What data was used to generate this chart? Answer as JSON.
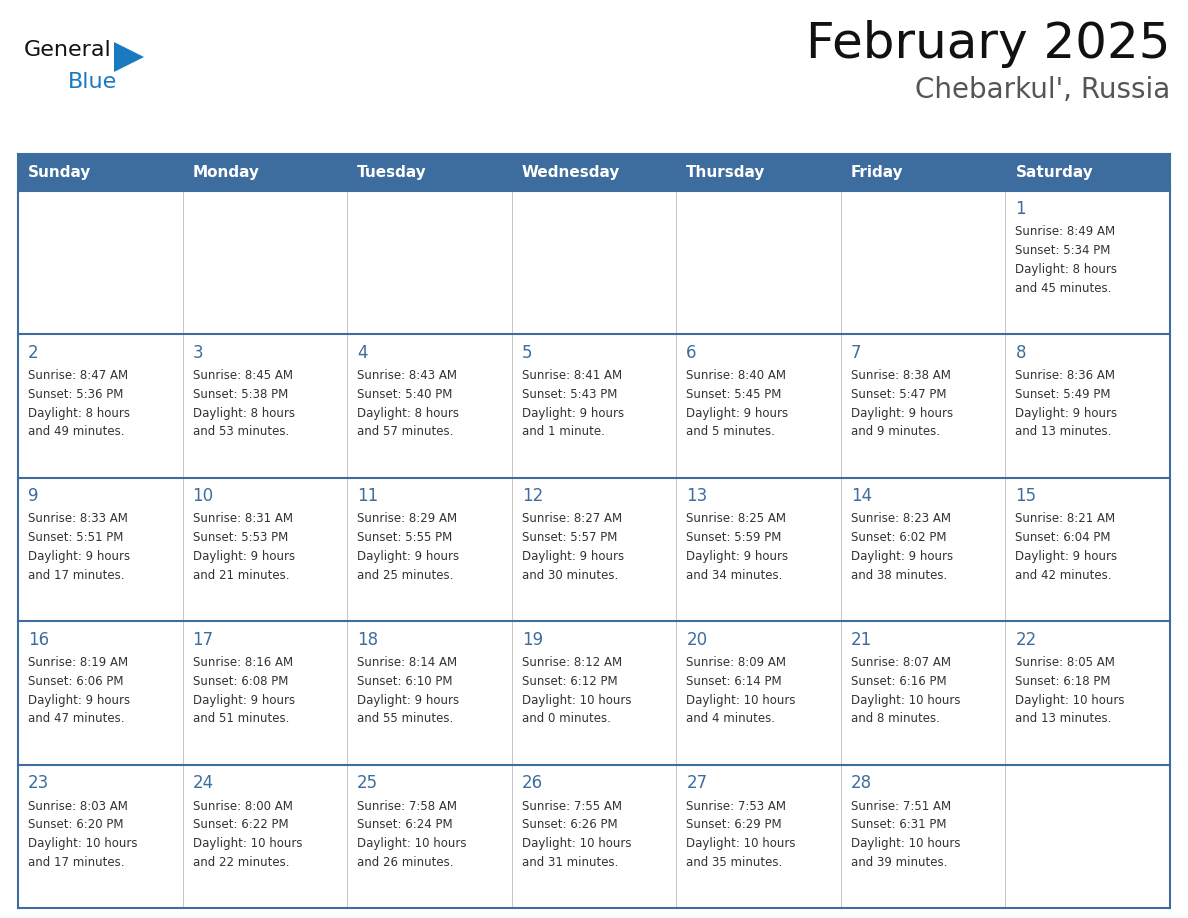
{
  "title": "February 2025",
  "subtitle": "Chebarkul', Russia",
  "header_bg": "#3d6d9e",
  "header_text_color": "#ffffff",
  "cell_bg": "#ffffff",
  "cell_bg_alt": "#f0f0f0",
  "day_number_color": "#3d6d9e",
  "text_color": "#333333",
  "border_color": "#3d6d9e",
  "grid_line_color": "#bbbbbb",
  "days_of_week": [
    "Sunday",
    "Monday",
    "Tuesday",
    "Wednesday",
    "Thursday",
    "Friday",
    "Saturday"
  ],
  "weeks": [
    [
      {
        "day": null,
        "info": null
      },
      {
        "day": null,
        "info": null
      },
      {
        "day": null,
        "info": null
      },
      {
        "day": null,
        "info": null
      },
      {
        "day": null,
        "info": null
      },
      {
        "day": null,
        "info": null
      },
      {
        "day": "1",
        "info": "Sunrise: 8:49 AM\nSunset: 5:34 PM\nDaylight: 8 hours\nand 45 minutes."
      }
    ],
    [
      {
        "day": "2",
        "info": "Sunrise: 8:47 AM\nSunset: 5:36 PM\nDaylight: 8 hours\nand 49 minutes."
      },
      {
        "day": "3",
        "info": "Sunrise: 8:45 AM\nSunset: 5:38 PM\nDaylight: 8 hours\nand 53 minutes."
      },
      {
        "day": "4",
        "info": "Sunrise: 8:43 AM\nSunset: 5:40 PM\nDaylight: 8 hours\nand 57 minutes."
      },
      {
        "day": "5",
        "info": "Sunrise: 8:41 AM\nSunset: 5:43 PM\nDaylight: 9 hours\nand 1 minute."
      },
      {
        "day": "6",
        "info": "Sunrise: 8:40 AM\nSunset: 5:45 PM\nDaylight: 9 hours\nand 5 minutes."
      },
      {
        "day": "7",
        "info": "Sunrise: 8:38 AM\nSunset: 5:47 PM\nDaylight: 9 hours\nand 9 minutes."
      },
      {
        "day": "8",
        "info": "Sunrise: 8:36 AM\nSunset: 5:49 PM\nDaylight: 9 hours\nand 13 minutes."
      }
    ],
    [
      {
        "day": "9",
        "info": "Sunrise: 8:33 AM\nSunset: 5:51 PM\nDaylight: 9 hours\nand 17 minutes."
      },
      {
        "day": "10",
        "info": "Sunrise: 8:31 AM\nSunset: 5:53 PM\nDaylight: 9 hours\nand 21 minutes."
      },
      {
        "day": "11",
        "info": "Sunrise: 8:29 AM\nSunset: 5:55 PM\nDaylight: 9 hours\nand 25 minutes."
      },
      {
        "day": "12",
        "info": "Sunrise: 8:27 AM\nSunset: 5:57 PM\nDaylight: 9 hours\nand 30 minutes."
      },
      {
        "day": "13",
        "info": "Sunrise: 8:25 AM\nSunset: 5:59 PM\nDaylight: 9 hours\nand 34 minutes."
      },
      {
        "day": "14",
        "info": "Sunrise: 8:23 AM\nSunset: 6:02 PM\nDaylight: 9 hours\nand 38 minutes."
      },
      {
        "day": "15",
        "info": "Sunrise: 8:21 AM\nSunset: 6:04 PM\nDaylight: 9 hours\nand 42 minutes."
      }
    ],
    [
      {
        "day": "16",
        "info": "Sunrise: 8:19 AM\nSunset: 6:06 PM\nDaylight: 9 hours\nand 47 minutes."
      },
      {
        "day": "17",
        "info": "Sunrise: 8:16 AM\nSunset: 6:08 PM\nDaylight: 9 hours\nand 51 minutes."
      },
      {
        "day": "18",
        "info": "Sunrise: 8:14 AM\nSunset: 6:10 PM\nDaylight: 9 hours\nand 55 minutes."
      },
      {
        "day": "19",
        "info": "Sunrise: 8:12 AM\nSunset: 6:12 PM\nDaylight: 10 hours\nand 0 minutes."
      },
      {
        "day": "20",
        "info": "Sunrise: 8:09 AM\nSunset: 6:14 PM\nDaylight: 10 hours\nand 4 minutes."
      },
      {
        "day": "21",
        "info": "Sunrise: 8:07 AM\nSunset: 6:16 PM\nDaylight: 10 hours\nand 8 minutes."
      },
      {
        "day": "22",
        "info": "Sunrise: 8:05 AM\nSunset: 6:18 PM\nDaylight: 10 hours\nand 13 minutes."
      }
    ],
    [
      {
        "day": "23",
        "info": "Sunrise: 8:03 AM\nSunset: 6:20 PM\nDaylight: 10 hours\nand 17 minutes."
      },
      {
        "day": "24",
        "info": "Sunrise: 8:00 AM\nSunset: 6:22 PM\nDaylight: 10 hours\nand 22 minutes."
      },
      {
        "day": "25",
        "info": "Sunrise: 7:58 AM\nSunset: 6:24 PM\nDaylight: 10 hours\nand 26 minutes."
      },
      {
        "day": "26",
        "info": "Sunrise: 7:55 AM\nSunset: 6:26 PM\nDaylight: 10 hours\nand 31 minutes."
      },
      {
        "day": "27",
        "info": "Sunrise: 7:53 AM\nSunset: 6:29 PM\nDaylight: 10 hours\nand 35 minutes."
      },
      {
        "day": "28",
        "info": "Sunrise: 7:51 AM\nSunset: 6:31 PM\nDaylight: 10 hours\nand 39 minutes."
      },
      {
        "day": null,
        "info": null
      }
    ]
  ],
  "logo_text_general": "General",
  "logo_text_blue": "Blue",
  "logo_color_general": "#111111",
  "logo_color_blue": "#1a7abf",
  "logo_triangle_color": "#1a7abf",
  "title_fontsize": 36,
  "subtitle_fontsize": 20,
  "header_fontsize": 11,
  "day_num_fontsize": 12,
  "info_fontsize": 8.5
}
